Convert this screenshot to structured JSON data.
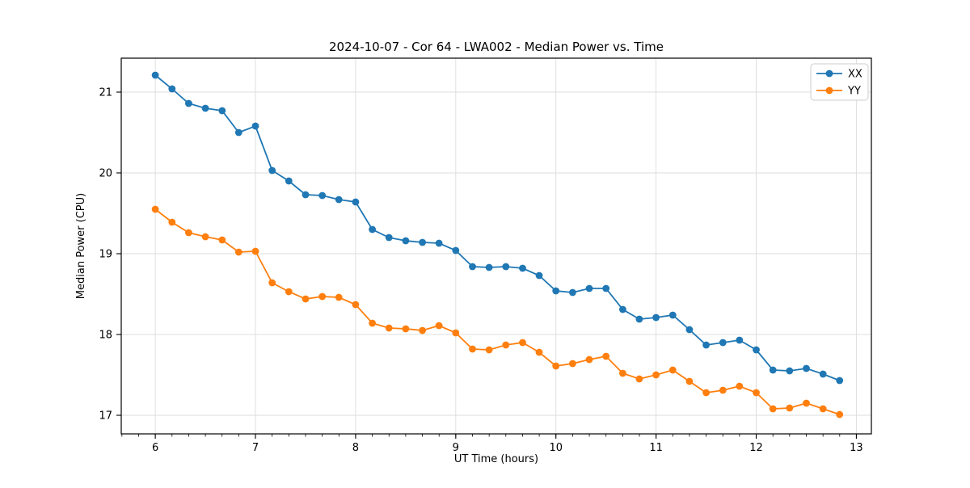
{
  "chart_data": {
    "type": "line",
    "title": "2024-10-07 - Cor 64 - LWA002 - Median Power vs. Time",
    "xlabel": "UT Time (hours)",
    "ylabel": "Median Power (CPU)",
    "xlim": [
      5.66,
      13.15
    ],
    "ylim": [
      16.77,
      21.42
    ],
    "xticks": [
      6,
      7,
      8,
      9,
      10,
      11,
      12,
      13
    ],
    "yticks": [
      17,
      18,
      19,
      20,
      21
    ],
    "x_minor_step": 0.16667,
    "grid": true,
    "grid_color": "#dcdcdc",
    "legend_position": "upper right",
    "x": [
      6.0,
      6.167,
      6.333,
      6.5,
      6.667,
      6.833,
      7.0,
      7.167,
      7.333,
      7.5,
      7.667,
      7.833,
      8.0,
      8.167,
      8.333,
      8.5,
      8.667,
      8.833,
      9.0,
      9.167,
      9.333,
      9.5,
      9.667,
      9.833,
      10.0,
      10.167,
      10.333,
      10.5,
      10.667,
      10.833,
      11.0,
      11.167,
      11.333,
      11.5,
      11.667,
      11.833,
      12.0,
      12.167,
      12.333,
      12.5,
      12.667,
      12.833
    ],
    "series": [
      {
        "name": "XX",
        "color": "#1f77b4",
        "marker": "circle",
        "values": [
          21.21,
          21.04,
          20.86,
          20.8,
          20.77,
          20.5,
          20.58,
          20.03,
          19.9,
          19.73,
          19.72,
          19.67,
          19.64,
          19.3,
          19.2,
          19.16,
          19.14,
          19.13,
          19.04,
          18.84,
          18.83,
          18.84,
          18.82,
          18.73,
          18.54,
          18.52,
          18.57,
          18.57,
          18.31,
          18.19,
          18.21,
          18.24,
          18.06,
          17.87,
          17.9,
          17.93,
          17.81,
          17.56,
          17.55,
          17.58,
          17.51,
          17.43
        ]
      },
      {
        "name": "YY",
        "color": "#ff7f0e",
        "marker": "circle",
        "values": [
          19.55,
          19.39,
          19.26,
          19.21,
          19.17,
          19.02,
          19.03,
          18.64,
          18.53,
          18.44,
          18.47,
          18.46,
          18.37,
          18.14,
          18.08,
          18.07,
          18.05,
          18.11,
          18.02,
          17.82,
          17.81,
          17.87,
          17.9,
          17.78,
          17.61,
          17.64,
          17.69,
          17.73,
          17.52,
          17.45,
          17.5,
          17.56,
          17.42,
          17.28,
          17.31,
          17.36,
          17.28,
          17.08,
          17.09,
          17.15,
          17.08,
          17.01
        ]
      }
    ]
  }
}
